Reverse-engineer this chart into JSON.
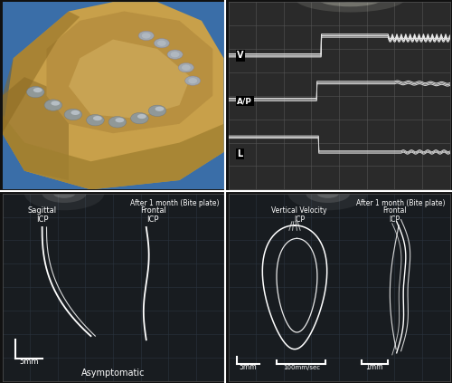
{
  "figure_bg": "#111111",
  "trace_color": "#ffffff",
  "label_color": "#ffffff",
  "title_bottom_left": "After 1 month (Bite plate)",
  "title_bottom_right": "After 1 month (Bite plate)",
  "bottom_left_footer": "Asymptomatic",
  "bottom_left_scale": "5mm",
  "bottom_right_scale1": "5mm",
  "bottom_right_scale2": "100mm/sec",
  "bottom_right_scale3": "1mm",
  "tr_labels": [
    "V",
    "A/P",
    "L"
  ],
  "tr_bg": "#2a2a2a",
  "grid_color_tr": "#555555",
  "bottom_bg": "#181c20",
  "grid_color_bottom": "#2a3540"
}
